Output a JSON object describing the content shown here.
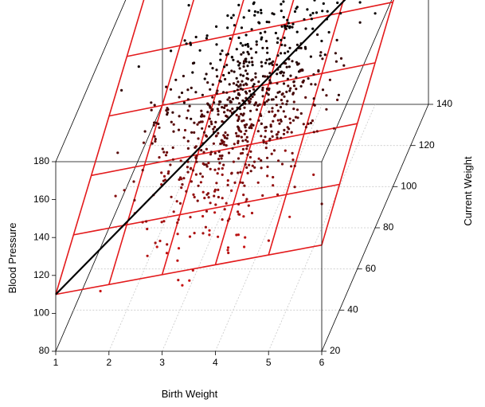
{
  "chart_data": {
    "type": "scatter",
    "variant": "3d-scatter-with-regression-plane",
    "xlabel": "Birth Weight",
    "ylabel": "Current Weight",
    "zlabel": "Blood Pressure",
    "xlim": [
      1,
      6
    ],
    "ylim": [
      20,
      140
    ],
    "zlim": [
      80,
      180
    ],
    "x_ticks": [
      "1",
      "2",
      "3",
      "4",
      "5",
      "6"
    ],
    "y_ticks": [
      "20",
      "40",
      "60",
      "80",
      "100",
      "120",
      "140"
    ],
    "z_ticks": [
      "80",
      "100",
      "120",
      "140",
      "160",
      "180"
    ],
    "grid": "plane grid",
    "plane_color": "#e31a1c",
    "point_color_low": "#c81414",
    "point_color_high": "#000000",
    "line_color": "#000000",
    "regression_line": {
      "start": {
        "x": 1,
        "y": 20,
        "z": 110
      },
      "end": {
        "x": 6,
        "y": 140,
        "z": 180
      }
    },
    "plane_corners": [
      {
        "x": 1,
        "y": 20,
        "z": 110
      },
      {
        "x": 6,
        "y": 20,
        "z": 136
      },
      {
        "x": 1,
        "y": 140,
        "z": 168
      },
      {
        "x": 6,
        "y": 140,
        "z": 198
      }
    ],
    "point_count": 800,
    "point_distribution": {
      "birth_weight_mean": 3.5,
      "birth_weight_sd": 0.8,
      "current_weight_mean": 80,
      "current_weight_sd": 20,
      "blood_pressure_mean": 150,
      "blood_pressure_sd": 7
    }
  }
}
